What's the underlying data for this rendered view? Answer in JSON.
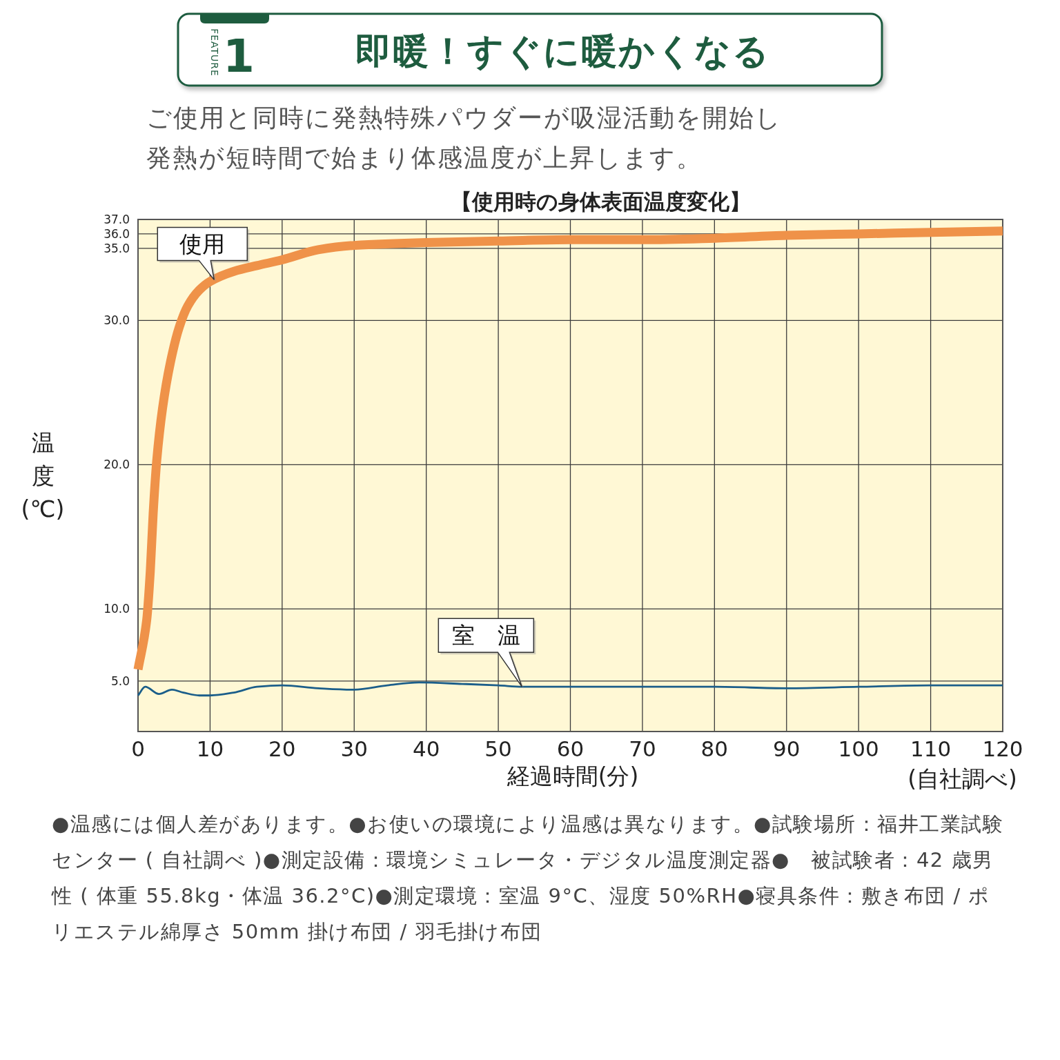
{
  "chart_data": {
    "type": "line",
    "title": "即暖！すぐに暖かくなる",
    "subtitle": "ご使用と同時に発熱特殊パウダーが吸湿活動を開始し発熱が短時間で始まり体感温度が上昇します。",
    "xlabel": "経過時間(分)",
    "ylabel": "温度(℃)",
    "annotations": [
      "FEATURE",
      "1",
      "【使用時の身体表面温度変化】",
      "(自社調べ)",
      "●温感には個人差があります。●お使いの環境により温感は異なります。●試験場所：福井工業試験センター ( 自社調べ )●測定設備：環境シミュレータ・デジタル温度測定器●　被試験者：42 歳男性 ( 体重 55.8kg・体温 36.2°C)●測定環境：室温 9°C、湿度 50%RH●寝具条件：敷き布団 / ポリエステル綿厚さ 50mm 掛け布団 / 羽毛掛け布団"
    ],
    "series": [
      {
        "name": "使用",
        "color": "#ef9249",
        "x": [
          0,
          1.2,
          1.7,
          2.1,
          2.6,
          3.4,
          4.5,
          5.7,
          6.9,
          8.5,
          10,
          13.3,
          16.5,
          20,
          25,
          30,
          40,
          50,
          60,
          70,
          80,
          90,
          100,
          110,
          120
        ],
        "values": [
          5.8,
          9.2,
          12.6,
          16.6,
          20.3,
          23.9,
          27.1,
          29.5,
          31.0,
          32.1,
          32.7,
          33.4,
          33.8,
          34.2,
          34.9,
          35.2,
          35.4,
          35.5,
          35.6,
          35.6,
          35.7,
          35.9,
          36.0,
          36.1,
          36.2
        ]
      },
      {
        "name": "室　温",
        "color": "#1b5e8a",
        "x": [
          0,
          1,
          2.9,
          4.7,
          6.3,
          8.5,
          10,
          13.3,
          16.5,
          20,
          25,
          30,
          34.6,
          39,
          45,
          50,
          53.3,
          60,
          70,
          80,
          90,
          100,
          110,
          120
        ],
        "values": [
          4.0,
          4.6,
          4.1,
          4.4,
          4.2,
          4.0,
          4.0,
          4.2,
          4.6,
          4.7,
          4.5,
          4.4,
          4.7,
          4.9,
          4.8,
          4.7,
          4.6,
          4.6,
          4.6,
          4.6,
          4.5,
          4.6,
          4.7,
          4.7
        ]
      }
    ],
    "xlim": [
      0,
      120
    ],
    "xticks": [
      0,
      10,
      20,
      30,
      40,
      50,
      60,
      70,
      80,
      90,
      100,
      110,
      120
    ],
    "ylim": [
      1.5,
      37
    ],
    "yticks": [
      {
        "value": 5,
        "label": "5.0"
      },
      {
        "value": 10,
        "label": "10.0"
      },
      {
        "value": 20,
        "label": "20.0"
      },
      {
        "value": 30,
        "label": "30.0"
      },
      {
        "value": 35,
        "label": "35.0"
      },
      {
        "value": 36,
        "label": "36.0"
      },
      {
        "value": 37,
        "label": "37.0"
      }
    ],
    "grid": true
  }
}
